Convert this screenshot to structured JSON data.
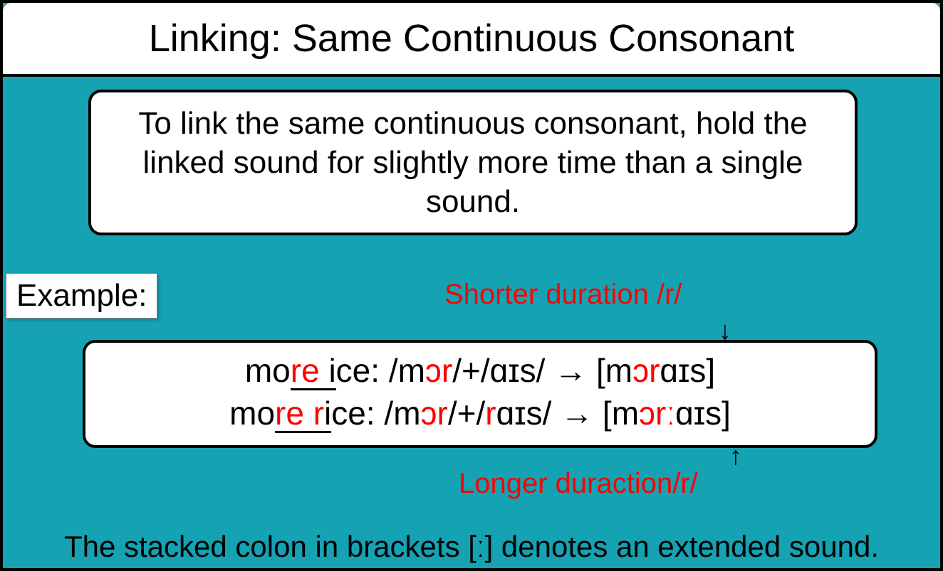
{
  "colors": {
    "background_teal": "#15a2b3",
    "panel_bg": "#ffffff",
    "border": "#000000",
    "text": "#000000",
    "highlight": "#ff0000"
  },
  "typography": {
    "title_fontsize": 54,
    "body_fontsize": 44,
    "phonetic_fontsize": 46,
    "annotation_fontsize": 40,
    "footer_fontsize": 42,
    "font_family": "Century Gothic / Futura style geometric sans-serif"
  },
  "layout": {
    "slide_width": 1324,
    "slide_height": 803,
    "border_width": 4,
    "border_radius": 18
  },
  "title": "Linking: Same Continuous Consonant",
  "explanation": "To link the same continuous consonant, hold the linked sound for slightly more time than a single sound.",
  "example_label": "Example:",
  "annotation_top": "Shorter duration /r/",
  "annotation_bottom": "Longer duraction/r/",
  "arrow_down": "↓",
  "arrow_up": "↑",
  "phon": {
    "row1": {
      "pre": "mo",
      "link_red": "re ",
      "link_black": "i",
      "mid1": "ce: /m",
      "ipa1_red": "ɔ",
      "ipa_r_red": "r",
      "mid2": "/+/ɑɪs/ → [m",
      "ipa2_red": "ɔ",
      "ipa_r2_red": "r",
      "tail": "ɑɪs]"
    },
    "row2": {
      "pre": "mo",
      "link_red": "re r",
      "link_black": "i",
      "mid1": "ce: /m",
      "ipa1_red": "ɔ",
      "ipa_r_red": "r",
      "mid2a": "/+/",
      "ipa_r_mid_red": "r",
      "mid2b": "ɑɪs/ → [m",
      "ipa2_red": "ɔ",
      "ipa_r2_red": "rː",
      "tail": "ɑɪs]"
    }
  },
  "footer": "The stacked colon in brackets [ː] denotes an extended sound."
}
